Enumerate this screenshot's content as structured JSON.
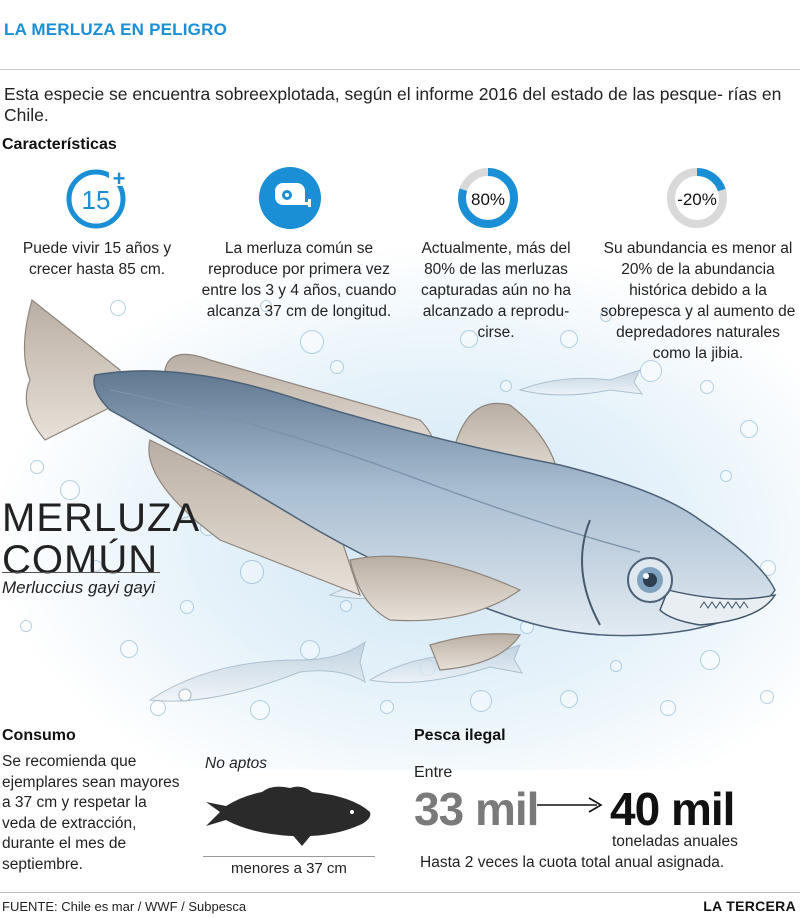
{
  "header": {
    "title": "LA MERLUZA EN PELIGRO"
  },
  "intro": "Esta especie se encuentra sobreexplotada, según el informe 2016 del estado de las pesque- rías en Chile.",
  "caracteristicas": {
    "label": "Características",
    "items": [
      {
        "icon": "lifespan-15-plus-icon",
        "badge": "15",
        "badge_sup": "+",
        "text": "Puede vivir 15 años y crecer hasta 85 cm."
      },
      {
        "icon": "tape-measure-icon",
        "badge": "",
        "text": "La merluza común se reproduce por primera vez entre los 3 y 4 años, cuando alcanza 37 cm de longitud."
      },
      {
        "icon": "percent-ring-icon",
        "badge": "80%",
        "ring_fraction": 0.8,
        "text": "Actualmente, más del 80% de las merluzas capturadas aún no ha alcanzado a reprodu- cirse."
      },
      {
        "icon": "percent-ring-icon",
        "badge": "-20%",
        "ring_fraction": 0.2,
        "text": "Su abundancia es menor al 20% de la abundancia histórica debido a la sobrepesca y al aumento de depredadores naturales como la jibia."
      }
    ]
  },
  "species": {
    "name_line1": "MERLUZA",
    "name_line2": "COMÚN",
    "scientific_name": "Merluccius gayi gayi"
  },
  "consumo": {
    "label": "Consumo",
    "text": "Se recomienda que ejemplares sean mayores a 37 cm y respetar la veda de extracción, durante el mes de septiembre.",
    "no_aptos": "No aptos",
    "menores": "menores a 37 cm"
  },
  "pesca_ilegal": {
    "label": "Pesca ilegal",
    "entre": "Entre",
    "from_value": "33 mil",
    "to_value": "40 mil",
    "unit": "toneladas anuales",
    "note": "Hasta 2 veces la cuota total anual asignada."
  },
  "footer": {
    "source": "FUENTE: Chile es mar / WWF / Subpesca",
    "brand": "LA TERCERA"
  },
  "colors": {
    "accent": "#1a8fd6",
    "ring_track": "#d9d9d9",
    "fish_body": "#9fb6cc",
    "fin": "#c9bfb4"
  }
}
